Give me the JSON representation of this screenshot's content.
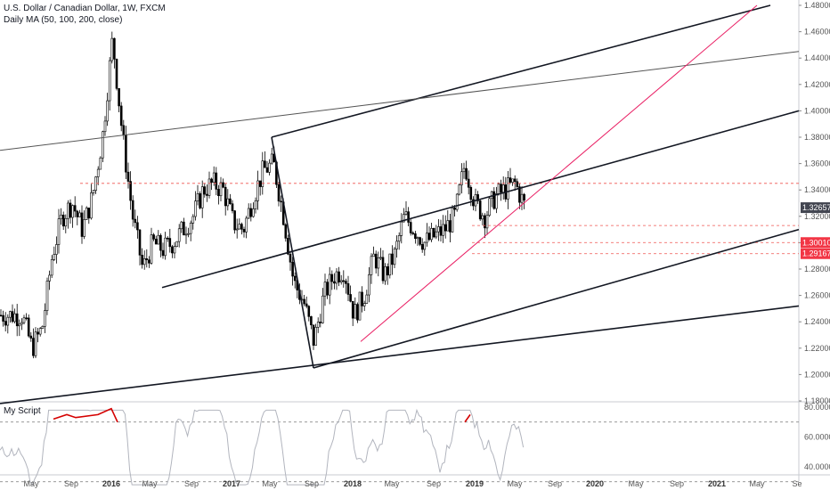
{
  "header": {
    "title": "U.S. Dollar / Canadian Dollar, 1W, FXCM",
    "indicator": "Daily MA (50, 100, 200, close)"
  },
  "oscillator": {
    "label": "My Script",
    "levels": [
      "80.00000",
      "60.00000",
      "40.00000"
    ]
  },
  "colors": {
    "up_candle": "#ffffff",
    "down_candle": "#000000",
    "trendline": "#131722",
    "pink_line": "#e91e63",
    "dashed_level": "#ef5350",
    "last_price_tag": "#434651",
    "level_tag": "#f23645",
    "osc_line": "#b2b5be",
    "osc_hot": "#d50000"
  },
  "chart_data": {
    "type": "candlestick",
    "y_ticks": [
      "1.48000",
      "1.46000",
      "1.44000",
      "1.42000",
      "1.40000",
      "1.38000",
      "1.36000",
      "1.34000",
      "1.32000",
      "1.30000",
      "1.28000",
      "1.26000",
      "1.24000",
      "1.22000",
      "1.20000",
      "1.18000"
    ],
    "x_ticks": [
      "May",
      "Sep",
      "2016",
      "May",
      "Sep",
      "2017",
      "May",
      "Sep",
      "2018",
      "May",
      "Sep",
      "2019",
      "May",
      "Sep",
      "2020",
      "May",
      "Sep",
      "2021",
      "May",
      "Se"
    ],
    "price_tags": [
      {
        "label": "1.32657",
        "value": 1.32657,
        "kind": "last"
      },
      {
        "label": "1.30010",
        "value": 1.3001,
        "kind": "level"
      },
      {
        "label": "1.29167",
        "value": 1.29167,
        "kind": "level"
      }
    ],
    "series": [
      {
        "name": "U.S. Dollar / Canadian Dollar",
        "points": [
          [
            "2015-04",
            1.245
          ],
          [
            "2015-05",
            1.22
          ],
          [
            "2015-06",
            1.235
          ],
          [
            "2015-07",
            1.29
          ],
          [
            "2015-08",
            1.32
          ],
          [
            "2015-09",
            1.33
          ],
          [
            "2015-10",
            1.31
          ],
          [
            "2015-11",
            1.335
          ],
          [
            "2015-12",
            1.38
          ],
          [
            "2016-01",
            1.455
          ],
          [
            "2016-02",
            1.38
          ],
          [
            "2016-03",
            1.32
          ],
          [
            "2016-04",
            1.28
          ],
          [
            "2016-05",
            1.3
          ],
          [
            "2016-06",
            1.295
          ],
          [
            "2016-07",
            1.3
          ],
          [
            "2016-08",
            1.31
          ],
          [
            "2016-09",
            1.32
          ],
          [
            "2016-10",
            1.34
          ],
          [
            "2016-11",
            1.345
          ],
          [
            "2016-12",
            1.34
          ],
          [
            "2017-01",
            1.315
          ],
          [
            "2017-02",
            1.31
          ],
          [
            "2017-03",
            1.335
          ],
          [
            "2017-04",
            1.355
          ],
          [
            "2017-05",
            1.36
          ],
          [
            "2017-06",
            1.32
          ],
          [
            "2017-07",
            1.27
          ],
          [
            "2017-08",
            1.255
          ],
          [
            "2017-09",
            1.225
          ],
          [
            "2017-10",
            1.26
          ],
          [
            "2017-11",
            1.275
          ],
          [
            "2017-12",
            1.28
          ],
          [
            "2018-01",
            1.245
          ],
          [
            "2018-02",
            1.26
          ],
          [
            "2018-03",
            1.29
          ],
          [
            "2018-04",
            1.275
          ],
          [
            "2018-05",
            1.29
          ],
          [
            "2018-06",
            1.32
          ],
          [
            "2018-07",
            1.31
          ],
          [
            "2018-08",
            1.3
          ],
          [
            "2018-09",
            1.305
          ],
          [
            "2018-10",
            1.31
          ],
          [
            "2018-11",
            1.32
          ],
          [
            "2018-12",
            1.36
          ],
          [
            "2019-01",
            1.33
          ],
          [
            "2019-02",
            1.32
          ],
          [
            "2019-03",
            1.335
          ],
          [
            "2019-04",
            1.34
          ],
          [
            "2019-05",
            1.345
          ],
          [
            "2019-06",
            1.327
          ]
        ]
      }
    ]
  }
}
